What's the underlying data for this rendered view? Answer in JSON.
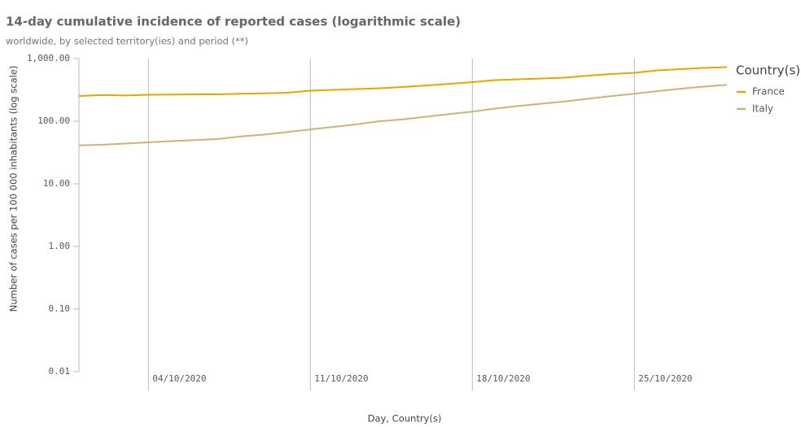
{
  "chart_data": {
    "type": "line",
    "title": "14-day cumulative incidence of reported cases (logarithmic scale)",
    "subtitle": "worldwide, by selected territory(ies) and period (**)",
    "x_label": "Day, Country(s)",
    "y_label": "Number of cases per 100 000 inhabitants (log scale)",
    "legend_title": "Country(s)",
    "legend_position": "right",
    "log_scale": true,
    "x_grid": true,
    "y_grid": false,
    "categories": [
      null,
      null,
      null,
      "04/10/2020",
      null,
      null,
      null,
      null,
      null,
      null,
      "11/10/2020",
      null,
      null,
      null,
      null,
      null,
      null,
      "18/10/2020",
      null,
      null,
      null,
      null,
      null,
      null,
      "25/10/2020",
      null,
      null,
      null,
      null
    ],
    "ylim": [
      0.01,
      1000
    ],
    "yticks": [
      {
        "value": 1000,
        "label": "1,000.00"
      },
      {
        "value": 100,
        "label": "100.00"
      },
      {
        "value": 10,
        "label": "10.00"
      },
      {
        "value": 1,
        "label": "1.00"
      },
      {
        "value": 0.1,
        "label": "0.10"
      },
      0.01
    ],
    "series": [
      {
        "name": "France",
        "color": "#e3a800",
        "values": [
          253,
          261,
          257,
          264,
          267,
          268,
          268,
          274,
          278,
          285,
          307,
          316,
          326,
          336,
          351,
          372,
          395,
          420,
          453,
          467,
          481,
          495,
          534,
          566,
          593,
          649,
          678,
          709,
          731
        ]
      },
      {
        "name": "Italy",
        "color": "#c9b47c",
        "values": [
          41,
          42,
          44,
          46,
          48,
          50,
          52,
          57,
          61,
          67,
          74,
          81,
          89,
          100,
          107,
          118,
          130,
          142,
          159,
          175,
          190,
          207,
          228,
          252,
          274,
          302,
          330,
          356,
          382
        ]
      }
    ]
  }
}
